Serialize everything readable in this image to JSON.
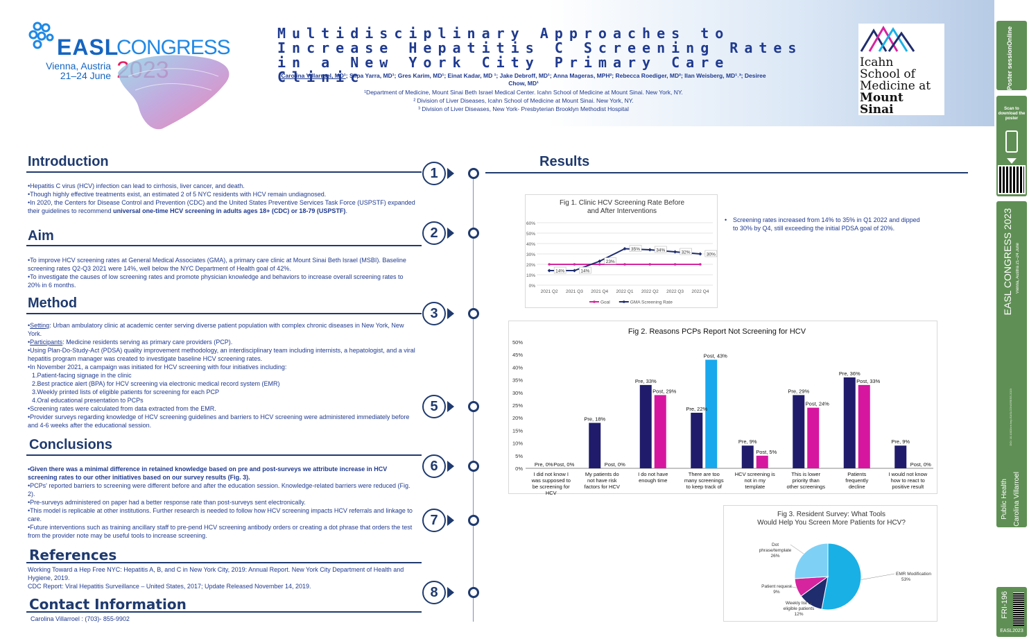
{
  "header": {
    "easl": {
      "word": "EASL",
      "congress": "CONGRESS",
      "city": "Vienna, Austria",
      "dates": "21–24 June",
      "year": "2023"
    },
    "title_lines": [
      "Multidisciplinary Approaches to",
      "Increase Hepatitis C Screening Rates",
      "in a New York City Primary Care Clinic"
    ],
    "authors_first": "Carolina Villarroel, MD¹",
    "authors_rest": "; Silpa Yarra, MD¹; Gres Karim, MD¹; Einat Kadar, MD ¹; Jake Debroff, MD¹; Anna Mageras, MPH²; Rebecca Roediger, MD²; Ilan Weisberg, MD¹˒³; Desiree Chow, MD¹",
    "affiliations": [
      "¹Department of Medicine, Mount Sinai Beth Israel Medical Center. Icahn School of Medicine at Mount Sinai. New York, NY.",
      "² Division of Liver Diseases, Icahn School of Medicine at Mount Sinai. New York, NY.",
      "³ Division of Liver Diseases, New York- Presbyterian Brooklyn Methodist Hospital"
    ],
    "icahn": [
      "Icahn",
      "School of",
      "Medicine at",
      "Mount",
      "Sinai"
    ]
  },
  "sidebar": {
    "sponsor": "Poster sessionOnline",
    "scan": "Scan to download the poster",
    "congress": "EASL CONGRESS 2023",
    "congress_sub": "Vienna, Austria 21–24 June",
    "doi": "DOI: 10.1002/cre.hep.EASLCONGRESS.2023",
    "topic": "Public Health",
    "author": "Carolina Villarroel",
    "code": "FRI-196",
    "tag": "EASL2023"
  },
  "sections": {
    "intro": {
      "title": "Introduction",
      "lines": [
        "•Hepatitis C virus (HCV) infection can lead to cirrhosis, liver cancer, and death.",
        "•Though highly effective treatments exist, an estimated 2 of 5 NYC residents with HCV remain undiagnosed.",
        "•In 2020, the Centers for Disease Control and Prevention (CDC) and the United States Preventive Services Task Force (USPSTF) expanded their guidelines to recommend"
      ],
      "bold": "universal one-time HCV screening in adults ages 18+ (CDC) or 18-79 (USPSTF)",
      "end": "."
    },
    "aim": {
      "title": "Aim",
      "lines": [
        "•To improve HCV screening rates at General Medical Associates (GMA), a primary care clinic at Mount Sinai Beth Israel (MSBI). Baseline screening rates Q2-Q3 2021 were 14%, well below the NYC Department of Health goal of 42%.",
        "•To investigate the causes of low screening rates and promote physician knowledge and behaviors to increase overall screening rates to 20% in 6 months."
      ]
    },
    "method": {
      "title": "Method",
      "setting_label": "Setting",
      "setting": ": Urban ambulatory clinic at academic center serving diverse patient population with complex chronic diseases in New York, New York.",
      "participants_label": "Participants",
      "participants": ": Medicine residents serving as primary care providers (PCP).",
      "lines": [
        "•Using Plan-Do-Study-Act (PDSA) quality improvement methodology, an interdisciplinary team including internists, a hepatologist, and a viral hepatitis program manager  was created to investigate baseline HCV screening rates.",
        "•In November 2021, a campaign was initiated for HCV screening with four initiatives including:",
        "1.Patient-facing signage in the clinic",
        "2.Best practice alert (BPA) for HCV screening via electronic medical record system (EMR)",
        "3.Weekly printed lists of eligible patients for screening for each PCP",
        "4.Oral educational presentation to PCPs",
        "•Screening rates were calculated from data extracted from the EMR.",
        "•Provider surveys regarding knowledge of HCV screening guidelines and barriers to HCV screening were administered immediately before and 4-6 weeks after the educational session."
      ]
    },
    "conclusions": {
      "title": "Conclusions",
      "bold": "•Given there was a minimal difference in retained knowledge based on pre and post-surveys we attribute increase in HCV screening rates to our other initiatives based on our survey results (Fig. 3).",
      "lines": [
        "•PCPs' reported barriers to screening were different before and after the education session. Knowledge-related barriers were reduced (Fig. 2).",
        "•Pre-surveys administered on paper had a better response rate than post-surveys sent electronically.",
        "•This model is replicable at other institutions. Further research is needed to follow how HCV screening impacts HCV referrals and linkage to care.",
        "•Future interventions such as training ancillary staff to pre-pend HCV screening antibody orders or creating a dot phrase that orders the test from the provider note may be useful tools to increase screening."
      ]
    },
    "references": {
      "title": "References",
      "lines": [
        "Working Toward a Hep Free NYC: Hepatitis A, B, and C in New York City, 2019: Annual Report. New York City Department of Health and Hygiene, 2019.",
        "CDC Report: Viral Hepatitis Surveillance – United States, 2017; Update Released November 14, 2019."
      ]
    },
    "contact": {
      "title": "Contact Information",
      "line": "Carolina Villarroel : (703)- 855-9902"
    },
    "results": {
      "title": "Results",
      "bullet": "Screening rates increased from 14% to 35% in Q1 2022 and dipped to 30% by Q4, still exceeding the initial PDSA goal of 20%."
    }
  },
  "markers": [
    "1",
    "2",
    "3",
    "5",
    "6",
    "7",
    "8"
  ],
  "chart_data": [
    {
      "type": "line",
      "title": "Fig 1. Clinic HCV Screening Rate Before and After Interventions",
      "categories": [
        "2021 Q2",
        "2021 Q3",
        "2021 Q4",
        "2022 Q1",
        "2022 Q2",
        "2022 Q3",
        "2022 Q4"
      ],
      "yticks": [
        "0%",
        "10%",
        "20%",
        "30%",
        "40%",
        "50%",
        "60%"
      ],
      "ylim": [
        0,
        60
      ],
      "series": [
        {
          "name": "Goal",
          "color": "#d6249f",
          "values": [
            20,
            20,
            20,
            20,
            20,
            20,
            20
          ]
        },
        {
          "name": "GMA Screening Rate",
          "color": "#1f2d6e",
          "values": [
            14,
            14,
            23,
            35,
            34,
            32,
            30
          ],
          "labels": [
            "14%",
            "14%",
            "23%",
            "35%",
            "34%",
            "32%",
            "30%"
          ]
        }
      ]
    },
    {
      "type": "bar",
      "title": "Fig 2. Reasons PCPs Report Not Screening for HCV",
      "categories": [
        "I did not know I was supposed to be screening for HCV",
        "My patients do not have risk factors for HCV",
        "I do not have enough time",
        "There are too many screenings to keep track of",
        "HCV screening is not in my template",
        "This is lower priority than other screenings",
        "Patients frequently decline",
        "I would not know how to react to positive result"
      ],
      "yticks": [
        "0%",
        "5%",
        "10%",
        "15%",
        "20%",
        "25%",
        "30%",
        "35%",
        "40%",
        "45%",
        "50%"
      ],
      "ylim": [
        0,
        50
      ],
      "series": [
        {
          "name": "Pre",
          "values": [
            0,
            18,
            33,
            22,
            9,
            29,
            36,
            9
          ]
        },
        {
          "name": "Post",
          "values": [
            0,
            0,
            29,
            43,
            5,
            24,
            33,
            0
          ]
        }
      ],
      "pre_labels": [
        "Pre, 0%",
        "Pre, 18%",
        "Pre, 33%",
        "Pre, 22%",
        "Pre, 9%",
        "Pre, 29%",
        "Pre, 36%",
        "Pre, 9%"
      ],
      "post_labels": [
        "Post, 0%",
        "Post, 0%",
        "Post, 29%",
        "Post, 43%",
        "Post, 5%",
        "Post, 24%",
        "Post, 33%",
        "Post, 0%"
      ]
    },
    {
      "type": "pie",
      "title": "Fig 3. Resident Survey:  What Tools Would Help You Screen More Patients for HCV?",
      "slices": [
        {
          "label": "EMR Modification",
          "pct": "53%",
          "value": 53,
          "color": "#19b0e6"
        },
        {
          "label": "Weekly list of eligible patients",
          "pct": "12%",
          "value": 12,
          "color": "#1f2d6e"
        },
        {
          "label": "Patient request",
          "pct": "9%",
          "value": 9,
          "color": "#d6249f"
        },
        {
          "label": "Dot phrase/template",
          "pct": "26%",
          "value": 26,
          "color": "#7fd0f5"
        }
      ]
    }
  ]
}
